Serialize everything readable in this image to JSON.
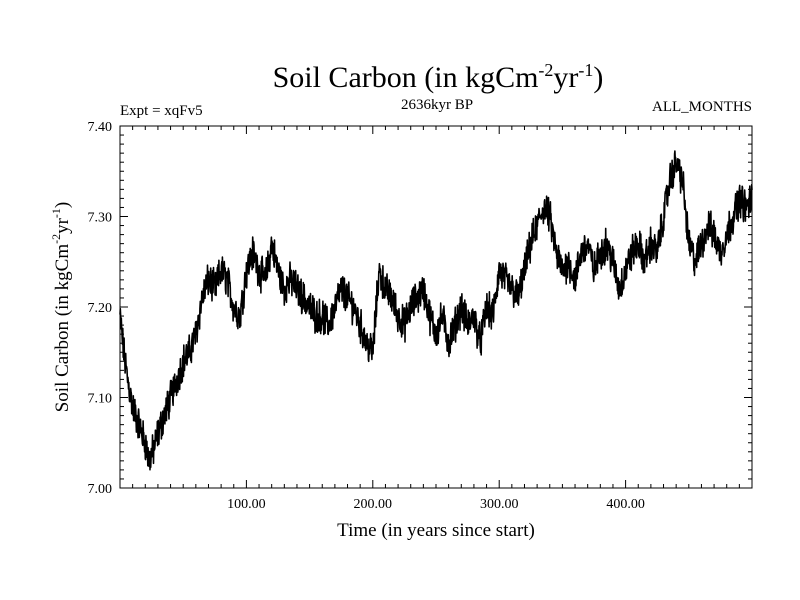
{
  "chart_data": {
    "type": "line",
    "title": "Soil Carbon (in kgCm",
    "title_sup1": "-2",
    "title_mid": "yr",
    "title_sup2": "-1",
    "title_end": ")",
    "left_label": "Expt = xqFv5",
    "center_label": "2636kyr BP",
    "right_label": "ALL_MONTHS",
    "xlabel": "Time (in years since start)",
    "ylabel": "Soil Carbon (in kgCm",
    "ylabel_sup1": "-2",
    "ylabel_mid": "yr",
    "ylabel_sup2": "-1",
    "ylabel_end": ")",
    "xlim": [
      0,
      500
    ],
    "ylim": [
      7.0,
      7.4
    ],
    "x_ticks": [
      100,
      200,
      300,
      400
    ],
    "x_tick_labels": [
      "100.00",
      "200.00",
      "300.00",
      "400.00"
    ],
    "y_ticks": [
      7.0,
      7.1,
      7.2,
      7.3,
      7.4
    ],
    "y_tick_labels": [
      "7.00",
      "7.10",
      "7.20",
      "7.30",
      "7.40"
    ],
    "line_color": "#000000",
    "series": [
      {
        "name": "Soil Carbon",
        "x": [
          0,
          3,
          6,
          10,
          15,
          20,
          23,
          26,
          30,
          35,
          40,
          45,
          50,
          55,
          60,
          65,
          70,
          75,
          80,
          85,
          90,
          95,
          100,
          105,
          110,
          115,
          120,
          125,
          130,
          135,
          140,
          145,
          150,
          155,
          160,
          165,
          170,
          175,
          180,
          185,
          190,
          195,
          200,
          205,
          210,
          215,
          220,
          225,
          230,
          235,
          240,
          245,
          250,
          255,
          260,
          265,
          270,
          275,
          280,
          285,
          290,
          295,
          300,
          305,
          310,
          315,
          320,
          325,
          330,
          335,
          340,
          345,
          350,
          355,
          360,
          365,
          370,
          375,
          380,
          385,
          390,
          395,
          400,
          405,
          410,
          415,
          420,
          425,
          430,
          435,
          440,
          445,
          450,
          455,
          460,
          465,
          470,
          475,
          480,
          485,
          490,
          495,
          500
        ],
        "values": [
          7.19,
          7.15,
          7.12,
          7.09,
          7.07,
          7.05,
          7.03,
          7.04,
          7.06,
          7.08,
          7.1,
          7.12,
          7.14,
          7.15,
          7.17,
          7.21,
          7.23,
          7.22,
          7.24,
          7.23,
          7.2,
          7.19,
          7.24,
          7.26,
          7.24,
          7.23,
          7.27,
          7.24,
          7.22,
          7.23,
          7.22,
          7.21,
          7.2,
          7.19,
          7.19,
          7.18,
          7.2,
          7.22,
          7.21,
          7.2,
          7.18,
          7.16,
          7.15,
          7.24,
          7.22,
          7.21,
          7.19,
          7.18,
          7.2,
          7.21,
          7.22,
          7.19,
          7.17,
          7.19,
          7.16,
          7.18,
          7.2,
          7.18,
          7.19,
          7.16,
          7.2,
          7.19,
          7.24,
          7.23,
          7.22,
          7.21,
          7.24,
          7.27,
          7.29,
          7.31,
          7.3,
          7.26,
          7.24,
          7.25,
          7.23,
          7.26,
          7.27,
          7.24,
          7.26,
          7.27,
          7.25,
          7.22,
          7.24,
          7.26,
          7.27,
          7.25,
          7.27,
          7.26,
          7.3,
          7.34,
          7.36,
          7.34,
          7.27,
          7.25,
          7.27,
          7.29,
          7.28,
          7.26,
          7.28,
          7.3,
          7.32,
          7.31,
          7.32
        ]
      }
    ]
  }
}
